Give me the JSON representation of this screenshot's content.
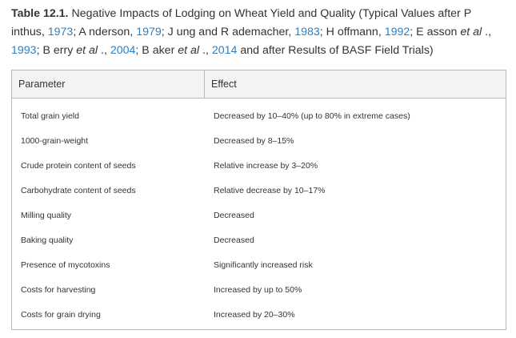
{
  "caption": {
    "label": "Table 12.1.",
    "t1": " Negative Impacts of Lodging on Wheat Yield and Quality (Typical Values after P inthus, ",
    "r1": "1973",
    "t2": "; A nderson, ",
    "r2": "1979",
    "t3": "; J ung and R ademacher, ",
    "r3": "1983",
    "t4": "; H offmann, ",
    "r4": "1992",
    "t5": "; E asson ",
    "e1": "et al",
    "t6": " ., ",
    "r5": "1993",
    "t7": "; B erry ",
    "e2": "et al",
    "t8": " ., ",
    "r6": "2004",
    "t9": "; B aker ",
    "e3": "et al",
    "t10": " ., ",
    "r7": "2014",
    "t11": " and after Results of BASF Field Trials)"
  },
  "table": {
    "headers": [
      "Parameter",
      "Effect"
    ],
    "rows": [
      [
        "Total grain yield",
        "Decreased by 10–40% (up to 80% in extreme cases)"
      ],
      [
        "1000-grain-weight",
        "Decreased by 8–15%"
      ],
      [
        "Crude protein content of seeds",
        "Relative increase by 3–20%"
      ],
      [
        "Carbohydrate content of seeds",
        "Relative decrease by 10–17%"
      ],
      [
        "Milling quality",
        "Decreased"
      ],
      [
        "Baking quality",
        "Decreased"
      ],
      [
        "Presence of mycotoxins",
        "Significantly increased risk"
      ],
      [
        "Costs for harvesting",
        "Increased by up to 50%"
      ],
      [
        "Costs for grain drying",
        "Increased by 20–30%"
      ]
    ]
  }
}
